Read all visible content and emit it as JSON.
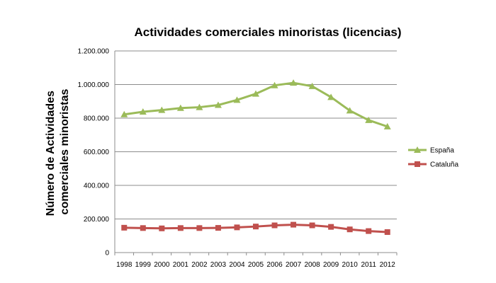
{
  "chart_data": {
    "type": "line",
    "title": "Actividades comerciales minoristas (licencias)",
    "xlabel": "",
    "ylabel": "Número de Actividades comerciales minoristas",
    "ylabel_lines": [
      "Número de Actividades",
      "comerciales minoristas"
    ],
    "ylim": [
      0,
      1200000
    ],
    "y_ticks": [
      0,
      200000,
      400000,
      600000,
      800000,
      1000000,
      1200000
    ],
    "y_tick_labels": [
      "0",
      "200.000",
      "400.000",
      "600.000",
      "800.000",
      "1.000.000",
      "1.200.000"
    ],
    "categories": [
      "1998",
      "1999",
      "2000",
      "2001",
      "2002",
      "2003",
      "2004",
      "2005",
      "2006",
      "2007",
      "2008",
      "2009",
      "2010",
      "2011",
      "2012"
    ],
    "grid": "horizontal",
    "legend": "right",
    "series": [
      {
        "name": "España",
        "color": "#9BBB59",
        "marker": "triangle",
        "values": [
          822000,
          838000,
          848000,
          860000,
          865000,
          878000,
          908000,
          945000,
          995000,
          1010000,
          990000,
          925000,
          845000,
          788000,
          750000
        ]
      },
      {
        "name": "Cataluña",
        "color": "#C0504D",
        "marker": "square",
        "values": [
          148000,
          146000,
          144000,
          146000,
          146000,
          147000,
          150000,
          155000,
          162000,
          166000,
          162000,
          153000,
          138000,
          128000,
          122000
        ]
      }
    ]
  }
}
